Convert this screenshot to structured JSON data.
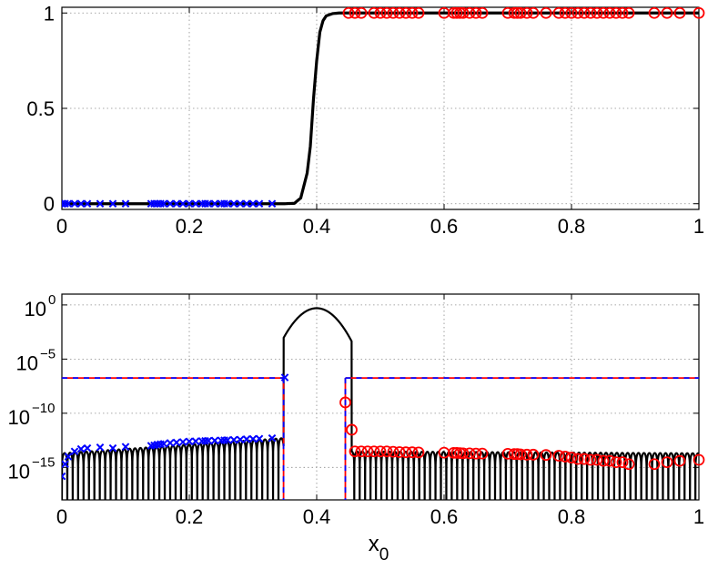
{
  "chart_data": [
    {
      "type": "line",
      "xlim": [
        0,
        1
      ],
      "ylim": [
        -0.03,
        1.03
      ],
      "xticks": [
        0,
        0.2,
        0.4,
        0.6,
        0.8,
        1
      ],
      "xtick_labels": [
        "0",
        "0.2",
        "0.4",
        "0.6",
        "0.8",
        "1"
      ],
      "yticks": [
        0,
        0.5,
        1
      ],
      "ytick_labels": [
        "0",
        "0.5",
        "1"
      ],
      "grid": true,
      "xlabel": "",
      "colors": {
        "curve": "#000000",
        "left_markers": "#0000ff",
        "right_markers": "#ff0000"
      },
      "series": [
        {
          "marker": "line",
          "x": [
            0,
            0.35,
            0.365,
            0.375,
            0.385,
            0.39,
            0.395,
            0.4,
            0.405,
            0.41,
            0.415,
            0.425,
            0.435,
            0.45,
            1
          ],
          "y": [
            0,
            0,
            0.002,
            0.03,
            0.16,
            0.3,
            0.55,
            0.75,
            0.9,
            0.96,
            0.985,
            0.997,
            1,
            1,
            1
          ]
        },
        {
          "marker": "x",
          "x": [
            0.0,
            0.005,
            0.01,
            0.02,
            0.03,
            0.04,
            0.06,
            0.08,
            0.1,
            0.14,
            0.145,
            0.15,
            0.155,
            0.16,
            0.17,
            0.18,
            0.19,
            0.2,
            0.21,
            0.22,
            0.225,
            0.23,
            0.24,
            0.25,
            0.255,
            0.26,
            0.27,
            0.28,
            0.29,
            0.3,
            0.31,
            0.33
          ],
          "y": [
            0,
            0,
            0,
            0,
            0,
            0,
            0,
            0,
            0,
            0,
            0,
            0,
            0,
            0,
            0,
            0,
            0,
            0,
            0,
            0,
            0,
            0,
            0,
            0,
            0,
            0,
            0,
            0,
            0,
            0,
            0,
            0
          ]
        },
        {
          "marker": "o",
          "x": [
            0.45,
            0.46,
            0.47,
            0.49,
            0.5,
            0.51,
            0.52,
            0.53,
            0.54,
            0.55,
            0.56,
            0.6,
            0.615,
            0.62,
            0.625,
            0.63,
            0.64,
            0.65,
            0.66,
            0.7,
            0.71,
            0.715,
            0.72,
            0.73,
            0.74,
            0.76,
            0.78,
            0.79,
            0.8,
            0.81,
            0.82,
            0.83,
            0.84,
            0.85,
            0.86,
            0.87,
            0.88,
            0.89,
            0.93,
            0.95,
            0.97,
            1.0
          ],
          "y": [
            1,
            1,
            1,
            1,
            1,
            1,
            1,
            1,
            1,
            1,
            1,
            1,
            1,
            1,
            1,
            1,
            1,
            1,
            1,
            1,
            1,
            1,
            1,
            1,
            1,
            1,
            1,
            1,
            1,
            1,
            1,
            1,
            1,
            1,
            1,
            1,
            1,
            1,
            1,
            1,
            1,
            1
          ]
        }
      ]
    },
    {
      "type": "line",
      "yscale": "log",
      "xlim": [
        0,
        1
      ],
      "ylim": [
        1e-18,
        10.0
      ],
      "xticks": [
        0,
        0.2,
        0.4,
        0.6,
        0.8,
        1
      ],
      "xtick_labels": [
        "0",
        "0.2",
        "0.4",
        "0.6",
        "0.8",
        "1"
      ],
      "yticks": [
        1e-15,
        1e-10,
        1e-05,
        1
      ],
      "ytick_labels": [
        {
          "base": "10",
          "exp": "−15"
        },
        {
          "base": "10",
          "exp": "−10"
        },
        {
          "base": "10",
          "exp": "−5"
        },
        {
          "base": "10",
          "exp": "0"
        }
      ],
      "grid": true,
      "xlabel": {
        "base": "x",
        "sub": "0"
      },
      "colors": {
        "curve": "#000000",
        "left_markers": "#0000ff",
        "right_markers": "#ff0000",
        "threshold": "#ff0000",
        "threshold_dash": "#0000ff"
      },
      "error_curve": {
        "description_free": true,
        "peak_x": 0.4,
        "peak_y": 0.5,
        "cross_left_x": 0.348,
        "cross_right_x": 0.455,
        "threshold_y": 1.8e-07,
        "envelope_left_y": [
          2e-14,
          5e-13
        ],
        "envelope_right_y": [
          3e-14,
          2e-14
        ],
        "oscillation_period": 0.0085
      },
      "series": [
        {
          "marker": "x",
          "x": [
            0.0,
            0.005,
            0.01,
            0.02,
            0.03,
            0.04,
            0.06,
            0.08,
            0.1,
            0.14,
            0.145,
            0.15,
            0.155,
            0.16,
            0.17,
            0.18,
            0.19,
            0.2,
            0.21,
            0.22,
            0.225,
            0.23,
            0.24,
            0.25,
            0.255,
            0.26,
            0.27,
            0.28,
            0.29,
            0.3,
            0.31,
            0.33,
            0.35
          ],
          "y": [
            1.5e-16,
            2e-15,
            1e-14,
            3e-14,
            5e-14,
            6e-14,
            7e-14,
            6e-14,
            8e-14,
            1e-13,
            1.1e-13,
            1.3e-13,
            1.4e-13,
            1.5e-13,
            1.8e-13,
            2e-13,
            2.2e-13,
            2.5e-13,
            2.6e-13,
            2.7e-13,
            2.8e-13,
            2.9e-13,
            3e-13,
            3.1e-13,
            3.2e-13,
            3.3e-13,
            3.5e-13,
            3.7e-13,
            4e-13,
            4.2e-13,
            4.5e-13,
            5e-13,
            2e-07
          ]
        },
        {
          "marker": "o",
          "x": [
            0.445,
            0.455,
            0.46,
            0.47,
            0.48,
            0.49,
            0.5,
            0.51,
            0.52,
            0.53,
            0.54,
            0.55,
            0.56,
            0.6,
            0.615,
            0.62,
            0.625,
            0.63,
            0.64,
            0.65,
            0.66,
            0.7,
            0.71,
            0.715,
            0.72,
            0.73,
            0.74,
            0.76,
            0.78,
            0.79,
            0.8,
            0.81,
            0.82,
            0.83,
            0.84,
            0.85,
            0.86,
            0.87,
            0.88,
            0.89,
            0.93,
            0.95,
            0.97,
            1.0
          ],
          "y": [
            1e-09,
            3e-12,
            3e-14,
            3e-14,
            3e-14,
            3e-14,
            3e-14,
            3e-14,
            2.8e-14,
            2.6e-14,
            2.5e-14,
            2.5e-14,
            2.4e-14,
            2.3e-14,
            2.2e-14,
            2.2e-14,
            2.1e-14,
            2e-14,
            2e-14,
            1.9e-14,
            1.9e-14,
            1.8e-14,
            1.7e-14,
            1.7e-14,
            1.6e-14,
            1.5e-14,
            1.5e-14,
            1.4e-14,
            1.2e-14,
            1e-14,
            8e-15,
            6e-15,
            6e-15,
            5e-15,
            5e-15,
            4e-15,
            4e-15,
            3e-15,
            3e-15,
            2e-15,
            2e-15,
            3e-15,
            4e-15,
            5e-15
          ]
        }
      ]
    }
  ]
}
